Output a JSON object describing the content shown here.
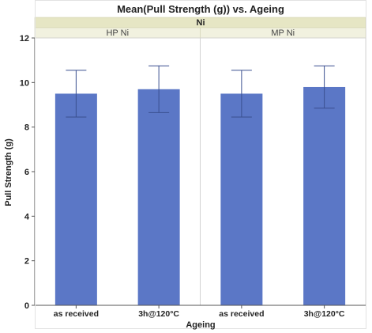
{
  "chart_data": {
    "type": "bar",
    "title": "Mean(Pull Strength (g)) vs. Ageing",
    "group_header": "Ni",
    "xlabel": "Ageing",
    "ylabel": "Pull Strength (g)",
    "ylim": [
      0,
      12
    ],
    "yticks": [
      0,
      2,
      4,
      6,
      8,
      10,
      12
    ],
    "grid": false,
    "color": "#5b77c6",
    "error_color": "#3a4f8f",
    "panels": [
      {
        "name": "HP Ni",
        "categories": [
          "as received",
          "3h@120°C"
        ],
        "values": [
          9.5,
          9.7
        ],
        "error_low": [
          8.45,
          8.65
        ],
        "error_high": [
          10.55,
          10.75
        ]
      },
      {
        "name": "MP Ni",
        "categories": [
          "as received",
          "3h@120°C"
        ],
        "values": [
          9.5,
          9.8
        ],
        "error_low": [
          8.45,
          8.85
        ],
        "error_high": [
          10.55,
          10.75
        ]
      }
    ]
  }
}
